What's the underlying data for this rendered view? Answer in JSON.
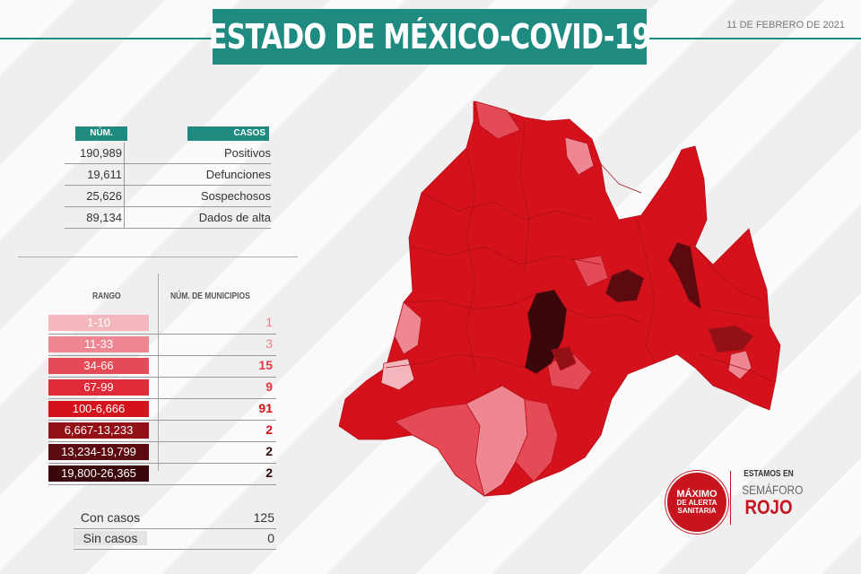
{
  "header": {
    "title": "ESTADO DE MÉXICO-COVID-19",
    "date": "11 DE FEBRERO DE 2021",
    "accent_color": "#1f8a80"
  },
  "cases_table": {
    "col_num": "NÚM.",
    "col_cases": "CASOS",
    "rows": [
      {
        "value": "190,989",
        "label": "Positivos"
      },
      {
        "value": "19,611",
        "label": "Defunciones"
      },
      {
        "value": "25,626",
        "label": "Sospechosos"
      },
      {
        "value": "89,134",
        "label": "Dados de alta"
      }
    ]
  },
  "range_legend": {
    "col_range": "RANGO",
    "col_municipalities": "NÚM. DE MUNICIPIOS",
    "rows": [
      {
        "range": "1-10",
        "count": "1",
        "color": "#f3b6bd"
      },
      {
        "range": "11-33",
        "count": "3",
        "color": "#ee8792"
      },
      {
        "range": "34-66",
        "count": "15",
        "color": "#e54a57"
      },
      {
        "range": "67-99",
        "count": "9",
        "color": "#e02a37"
      },
      {
        "range": "100-6,666",
        "count": "91",
        "color": "#d5121c"
      },
      {
        "range": "6,667-13,233",
        "count": "2",
        "color": "#931016"
      },
      {
        "range": "13,234-19,799",
        "count": "2",
        "color": "#5c0a10"
      },
      {
        "range": "19,800-26,365",
        "count": "2",
        "color": "#3a080b"
      }
    ]
  },
  "summary": {
    "with_cases_label": "Con casos",
    "with_cases_value": "125",
    "without_cases_label": "Sin casos",
    "without_cases_value": "0"
  },
  "alert": {
    "badge_line1": "MÁXIMO",
    "badge_line2": "DE ALERTA",
    "badge_line3": "SANITARIA",
    "text_line1": "ESTAMOS EN",
    "text_line2": "SEMÁFORO",
    "text_line3": "ROJO",
    "color": "#c8141e"
  }
}
